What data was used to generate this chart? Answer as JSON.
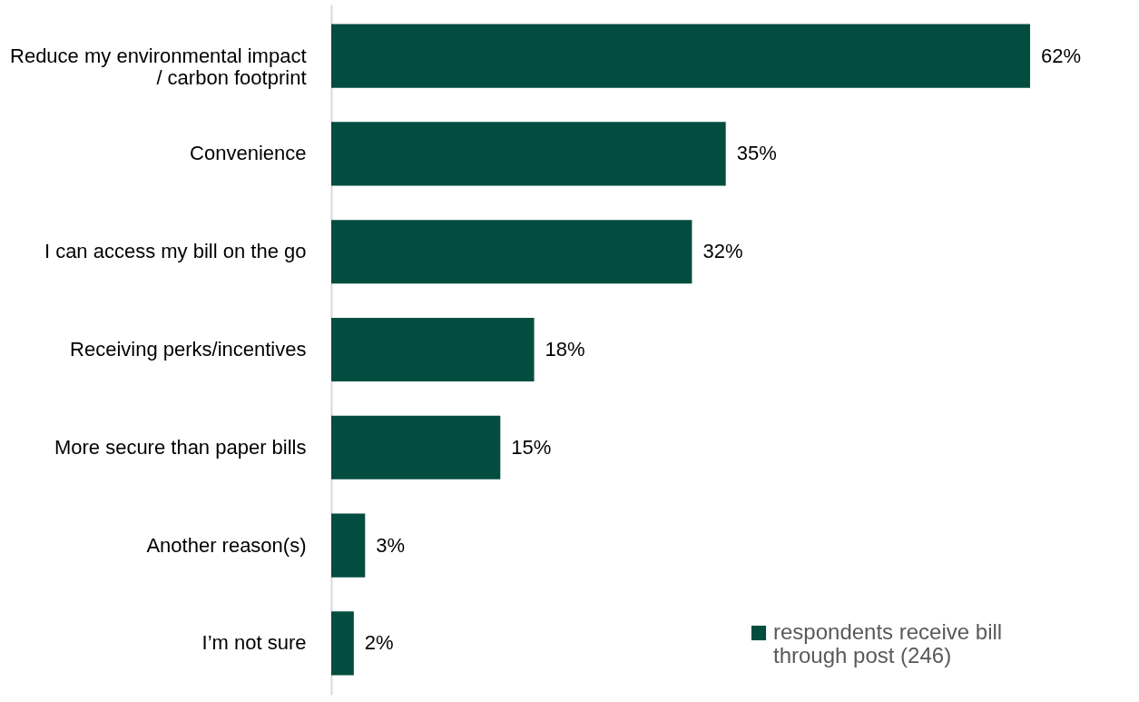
{
  "chart_data": {
    "type": "bar",
    "orientation": "horizontal",
    "categories": [
      "Reduce my environmental impact / carbon footprint",
      "Convenience",
      "I can access my bill on the go",
      "Receiving perks/incentives",
      "More secure than paper bills",
      "Another reason(s)",
      "I’m not sure"
    ],
    "series": [
      {
        "name": "respondents receive bill through post (246)",
        "color": "#034d40",
        "values": [
          62,
          35,
          32,
          18,
          15,
          3,
          2
        ],
        "value_labels": [
          "62%",
          "35%",
          "32%",
          "18%",
          "15%",
          "3%",
          "2%"
        ]
      }
    ],
    "legend": "bottom right"
  }
}
